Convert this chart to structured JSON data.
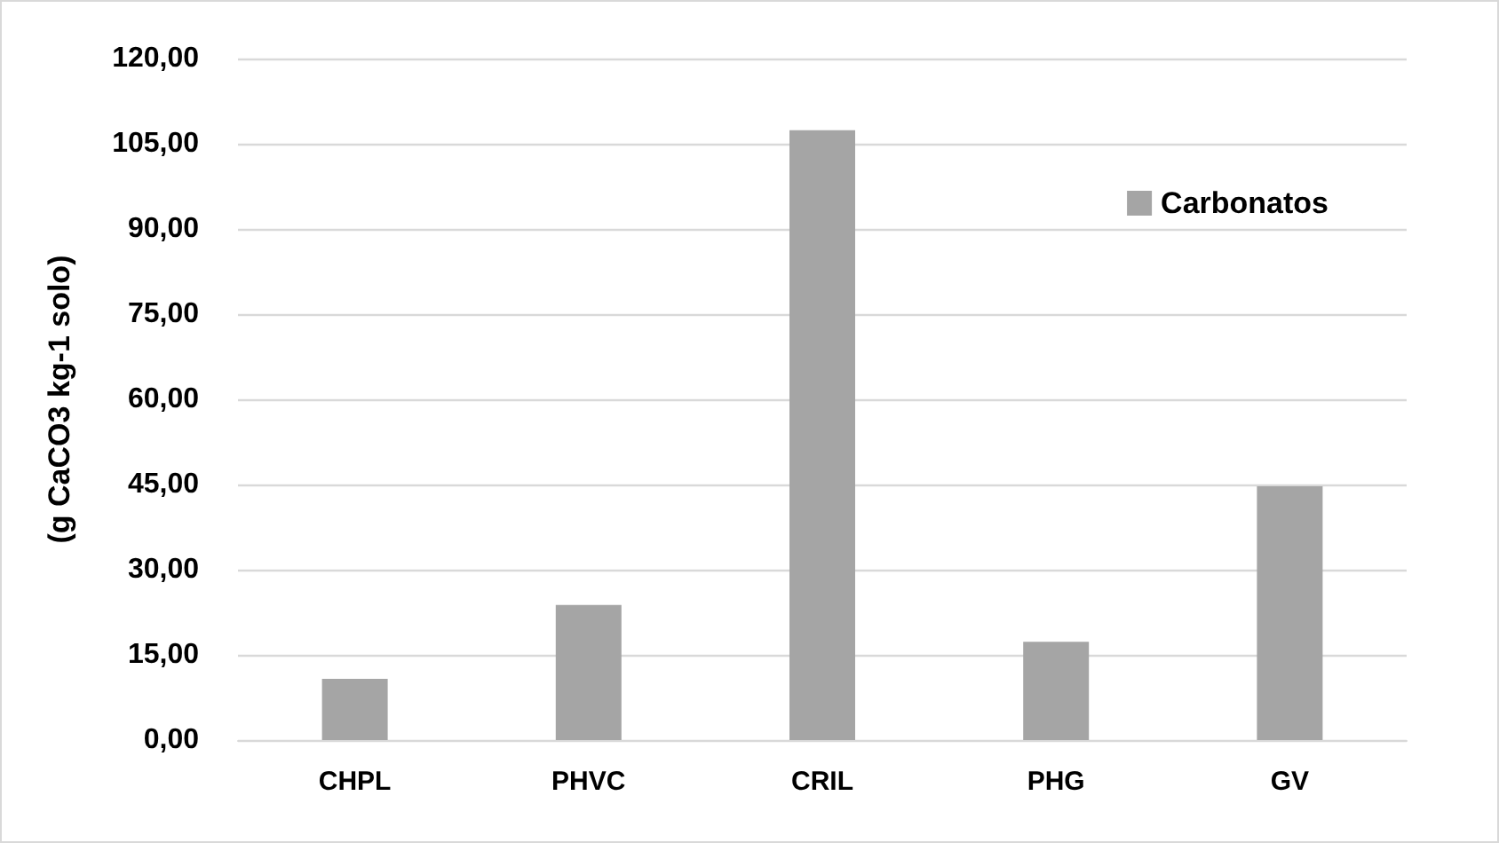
{
  "chart_data": {
    "type": "bar",
    "ylabel": "(g CaCO3 kg-1 solo)",
    "categories": [
      "CHPL",
      "PHVC",
      "CRIL",
      "PHG",
      "GV"
    ],
    "series": [
      {
        "name": "Carbonatos",
        "color": "#a5a5a5",
        "values": [
          10.8,
          23.8,
          107.4,
          17.3,
          44.7
        ]
      }
    ],
    "ylim": [
      0,
      120
    ],
    "yticks": [
      {
        "value": 0,
        "label": "0,00"
      },
      {
        "value": 15,
        "label": "15,00"
      },
      {
        "value": 30,
        "label": "30,00"
      },
      {
        "value": 45,
        "label": "45,00"
      },
      {
        "value": 60,
        "label": "60,00"
      },
      {
        "value": 75,
        "label": "75,00"
      },
      {
        "value": 90,
        "label": "90,00"
      },
      {
        "value": 105,
        "label": "105,00"
      },
      {
        "value": 120,
        "label": "120,00"
      }
    ],
    "grid": "y",
    "legend": "top right"
  }
}
